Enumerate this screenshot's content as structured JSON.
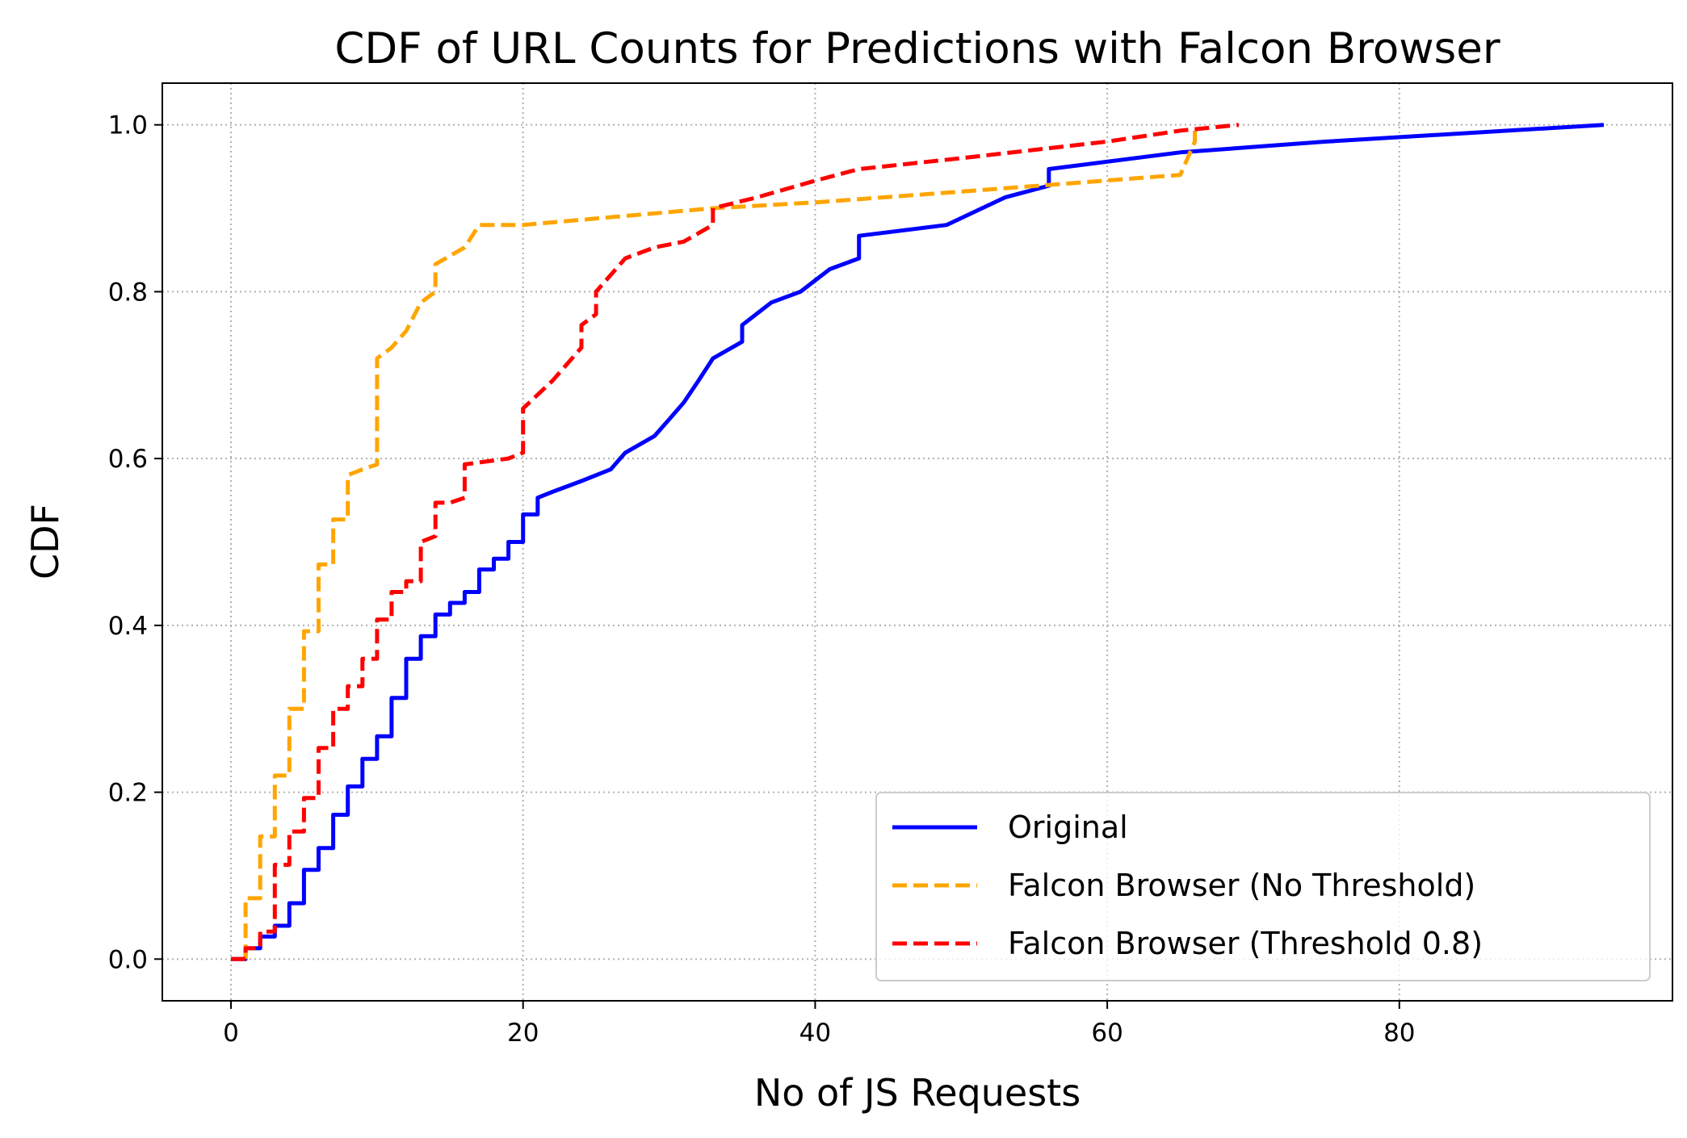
{
  "chart_data": {
    "type": "line",
    "title": "CDF of URL Counts for Predictions with Falcon Browser",
    "xlabel": "No of JS Requests",
    "ylabel": "CDF",
    "xlim": [
      -4.7,
      98.7
    ],
    "ylim": [
      -0.05,
      1.05
    ],
    "xticks": [
      0,
      20,
      40,
      60,
      80
    ],
    "yticks": [
      0.0,
      0.2,
      0.4,
      0.6,
      0.8,
      1.0
    ],
    "xtick_labels": [
      "0",
      "20",
      "40",
      "60",
      "80"
    ],
    "ytick_labels": [
      "0.0",
      "0.2",
      "0.4",
      "0.6",
      "0.8",
      "1.0"
    ],
    "grid": true,
    "legend_position": "lower-right",
    "series": [
      {
        "name": "Original",
        "color": "#0000ff",
        "style": "solid",
        "points": [
          [
            0,
            0.0
          ],
          [
            1,
            0.0
          ],
          [
            1,
            0.013
          ],
          [
            2,
            0.013
          ],
          [
            2,
            0.027
          ],
          [
            3,
            0.027
          ],
          [
            3,
            0.04
          ],
          [
            4,
            0.04
          ],
          [
            4,
            0.067
          ],
          [
            5,
            0.067
          ],
          [
            5,
            0.107
          ],
          [
            6,
            0.107
          ],
          [
            6,
            0.133
          ],
          [
            7,
            0.133
          ],
          [
            7,
            0.173
          ],
          [
            8,
            0.173
          ],
          [
            8,
            0.207
          ],
          [
            9,
            0.207
          ],
          [
            9,
            0.24
          ],
          [
            10,
            0.24
          ],
          [
            10,
            0.267
          ],
          [
            11,
            0.267
          ],
          [
            11,
            0.313
          ],
          [
            12,
            0.313
          ],
          [
            12,
            0.36
          ],
          [
            13,
            0.36
          ],
          [
            13,
            0.387
          ],
          [
            14,
            0.387
          ],
          [
            14,
            0.413
          ],
          [
            15,
            0.413
          ],
          [
            15,
            0.427
          ],
          [
            16,
            0.427
          ],
          [
            16,
            0.44
          ],
          [
            17,
            0.44
          ],
          [
            17,
            0.467
          ],
          [
            18,
            0.467
          ],
          [
            18,
            0.48
          ],
          [
            19,
            0.48
          ],
          [
            19,
            0.5
          ],
          [
            20,
            0.5
          ],
          [
            20,
            0.533
          ],
          [
            21,
            0.533
          ],
          [
            21,
            0.553
          ],
          [
            22,
            0.56
          ],
          [
            24,
            0.573
          ],
          [
            26,
            0.587
          ],
          [
            27,
            0.607
          ],
          [
            29,
            0.627
          ],
          [
            30,
            0.647
          ],
          [
            31,
            0.667
          ],
          [
            32,
            0.693
          ],
          [
            33,
            0.72
          ],
          [
            35,
            0.74
          ],
          [
            35,
            0.76
          ],
          [
            37,
            0.787
          ],
          [
            39,
            0.8
          ],
          [
            41,
            0.827
          ],
          [
            43,
            0.84
          ],
          [
            43,
            0.867
          ],
          [
            49,
            0.88
          ],
          [
            53,
            0.913
          ],
          [
            56,
            0.927
          ],
          [
            56,
            0.947
          ],
          [
            65,
            0.967
          ],
          [
            75,
            0.98
          ],
          [
            94,
            1.0
          ]
        ]
      },
      {
        "name": "Falcon Browser (No Threshold)",
        "color": "#ffa500",
        "style": "dashed",
        "points": [
          [
            1,
            0.0
          ],
          [
            1,
            0.073
          ],
          [
            2,
            0.073
          ],
          [
            2,
            0.147
          ],
          [
            3,
            0.147
          ],
          [
            3,
            0.22
          ],
          [
            4,
            0.22
          ],
          [
            4,
            0.3
          ],
          [
            5,
            0.3
          ],
          [
            5,
            0.393
          ],
          [
            6,
            0.393
          ],
          [
            6,
            0.473
          ],
          [
            7,
            0.473
          ],
          [
            7,
            0.527
          ],
          [
            8,
            0.527
          ],
          [
            8,
            0.58
          ],
          [
            9,
            0.587
          ],
          [
            10,
            0.593
          ],
          [
            10,
            0.647
          ],
          [
            10,
            0.72
          ],
          [
            11,
            0.733
          ],
          [
            12,
            0.753
          ],
          [
            13,
            0.787
          ],
          [
            14,
            0.8
          ],
          [
            14,
            0.833
          ],
          [
            16,
            0.853
          ],
          [
            17,
            0.88
          ],
          [
            20,
            0.88
          ],
          [
            33,
            0.9
          ],
          [
            40,
            0.907
          ],
          [
            50,
            0.92
          ],
          [
            65,
            0.94
          ],
          [
            66,
            0.98
          ],
          [
            66,
            1.0
          ]
        ]
      },
      {
        "name": "Falcon Browser (Threshold 0.8)",
        "color": "#ff0000",
        "style": "dashed",
        "points": [
          [
            0,
            0.0
          ],
          [
            1,
            0.0
          ],
          [
            1,
            0.013
          ],
          [
            2,
            0.013
          ],
          [
            2,
            0.033
          ],
          [
            3,
            0.033
          ],
          [
            3,
            0.113
          ],
          [
            4,
            0.113
          ],
          [
            4,
            0.153
          ],
          [
            5,
            0.153
          ],
          [
            5,
            0.193
          ],
          [
            6,
            0.193
          ],
          [
            6,
            0.253
          ],
          [
            7,
            0.253
          ],
          [
            7,
            0.3
          ],
          [
            8,
            0.3
          ],
          [
            8,
            0.327
          ],
          [
            9,
            0.327
          ],
          [
            9,
            0.36
          ],
          [
            10,
            0.36
          ],
          [
            10,
            0.407
          ],
          [
            11,
            0.407
          ],
          [
            11,
            0.44
          ],
          [
            12,
            0.44
          ],
          [
            12,
            0.453
          ],
          [
            13,
            0.453
          ],
          [
            13,
            0.5
          ],
          [
            14,
            0.507
          ],
          [
            14,
            0.547
          ],
          [
            15,
            0.547
          ],
          [
            16,
            0.553
          ],
          [
            16,
            0.593
          ],
          [
            19,
            0.6
          ],
          [
            20,
            0.607
          ],
          [
            20,
            0.66
          ],
          [
            22,
            0.693
          ],
          [
            24,
            0.733
          ],
          [
            24,
            0.76
          ],
          [
            25,
            0.773
          ],
          [
            25,
            0.8
          ],
          [
            27,
            0.84
          ],
          [
            29,
            0.853
          ],
          [
            31,
            0.86
          ],
          [
            33,
            0.88
          ],
          [
            33,
            0.9
          ],
          [
            36,
            0.913
          ],
          [
            40,
            0.933
          ],
          [
            43,
            0.947
          ],
          [
            50,
            0.96
          ],
          [
            60,
            0.98
          ],
          [
            65,
            0.993
          ],
          [
            69,
            1.0
          ]
        ]
      }
    ]
  }
}
